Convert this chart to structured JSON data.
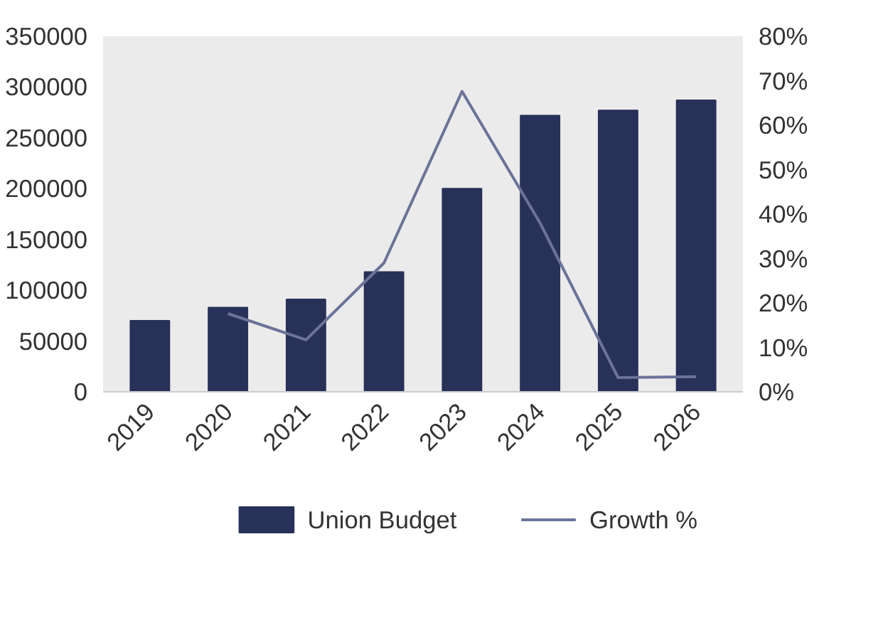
{
  "chart_data": {
    "type": "bar",
    "categories": [
      "2019",
      "2020",
      "2021",
      "2022",
      "2023",
      "2024",
      "2025",
      "2026"
    ],
    "series": [
      {
        "name": "Union Budget",
        "color": "#283158",
        "values": [
          70000,
          83000,
          91000,
          118000,
          200000,
          272000,
          277000,
          287000
        ]
      },
      {
        "name": "Growth %",
        "type": "line",
        "axis": "y2",
        "color": "#6b7399",
        "values": [
          null,
          17.6,
          11.7,
          29,
          67.6,
          38,
          3.2,
          3.4
        ]
      }
    ],
    "ylim": [
      0,
      350000
    ],
    "yticks": [
      0,
      50000,
      100000,
      150000,
      200000,
      250000,
      300000,
      350000
    ],
    "y2lim": [
      0,
      80
    ],
    "y2ticks": [
      {
        "value": 0,
        "label": "0%"
      },
      {
        "value": 10,
        "label": "10%"
      },
      {
        "value": 20,
        "label": "20%"
      },
      {
        "value": 30,
        "label": "30%"
      },
      {
        "value": 40,
        "label": "40%"
      },
      {
        "value": 50,
        "label": "50%"
      },
      {
        "value": 60,
        "label": "60%"
      },
      {
        "value": 70,
        "label": "70%"
      },
      {
        "value": 80,
        "label": "80%"
      }
    ],
    "grid": false,
    "legend": "bottom",
    "line_style": "solid",
    "marker": "none"
  }
}
